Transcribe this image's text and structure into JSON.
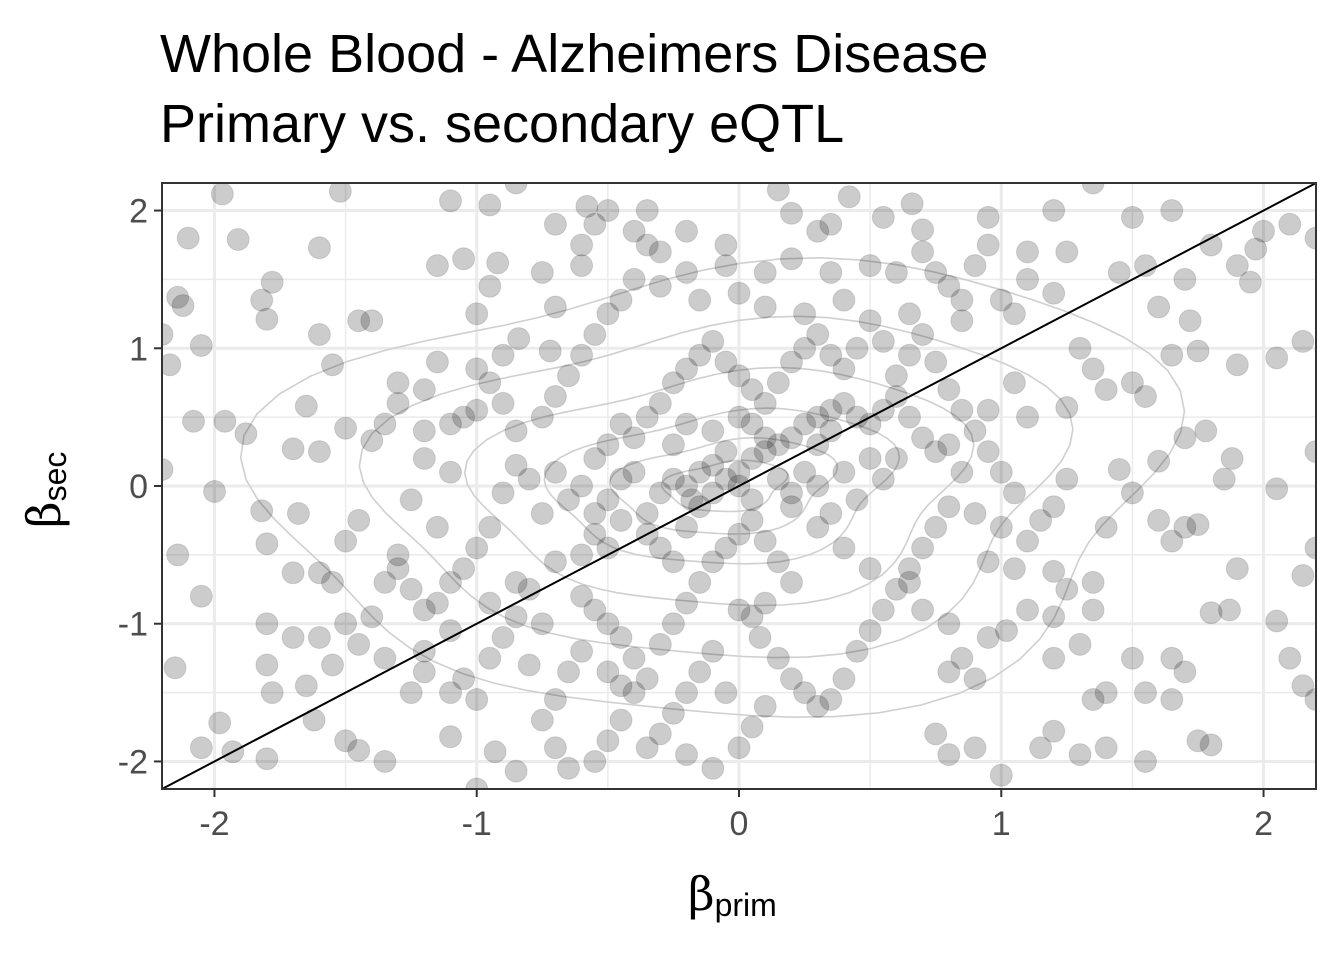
{
  "chart_data": {
    "type": "scatter",
    "title": "Whole Blood - Alzheimers Disease",
    "subtitle": "Primary vs. secondary eQTL",
    "xlabel": {
      "symbol": "β",
      "subscript": "prim"
    },
    "ylabel": {
      "symbol": "β",
      "subscript": "sec"
    },
    "xlim": [
      -2.2,
      2.2
    ],
    "ylim": [
      -2.2,
      2.2
    ],
    "x_ticks": [
      -2,
      -1,
      0,
      1,
      2
    ],
    "y_ticks": [
      -2,
      -1,
      0,
      1,
      2
    ],
    "x_tick_labels": [
      "-2",
      "-1",
      "0",
      "1",
      "2"
    ],
    "y_tick_labels": [
      "-2",
      "-1",
      "0",
      "1",
      "2"
    ],
    "grid": true,
    "reference_line": {
      "slope": 1,
      "intercept": 0
    },
    "density_contours": true,
    "colors": {
      "point": "#000000",
      "point_alpha": 0.2,
      "grid": "#ebebeb",
      "contour": "#cfcfcf",
      "frame": "#333333"
    },
    "points": [
      [
        -1.97,
        2.12
      ],
      [
        -1.52,
        2.14
      ],
      [
        -1.91,
        1.79
      ],
      [
        -2.1,
        1.8
      ],
      [
        -1.6,
        1.73
      ],
      [
        -1.1,
        2.07
      ],
      [
        -0.85,
        2.2
      ],
      [
        -0.95,
        2.04
      ],
      [
        -2.14,
        1.37
      ],
      [
        -2.12,
        1.31
      ],
      [
        -1.78,
        1.48
      ],
      [
        -1.82,
        1.35
      ],
      [
        -1.8,
        1.21
      ],
      [
        -1.45,
        1.2
      ],
      [
        -1.4,
        1.2
      ],
      [
        -2.05,
        1.02
      ],
      [
        -2.2,
        1.1
      ],
      [
        -1.55,
        0.88
      ],
      [
        -1.6,
        1.1
      ],
      [
        -2.17,
        0.88
      ],
      [
        -1.96,
        0.47
      ],
      [
        -1.88,
        0.38
      ],
      [
        -1.65,
        0.58
      ],
      [
        -1.3,
        0.75
      ],
      [
        -1.5,
        0.42
      ],
      [
        -1.4,
        0.33
      ],
      [
        -1.6,
        0.25
      ],
      [
        -1.7,
        0.27
      ],
      [
        -2.08,
        0.47
      ],
      [
        -2.2,
        0.12
      ],
      [
        -2.0,
        -0.04
      ],
      [
        -1.82,
        -0.18
      ],
      [
        -1.68,
        -0.2
      ],
      [
        -1.8,
        -0.42
      ],
      [
        -2.14,
        -0.5
      ],
      [
        -2.05,
        -0.8
      ],
      [
        -1.7,
        -0.63
      ],
      [
        -1.6,
        -0.63
      ],
      [
        -1.55,
        -0.7
      ],
      [
        -1.35,
        -0.7
      ],
      [
        -1.3,
        -0.5
      ],
      [
        -1.8,
        -1.0
      ],
      [
        -1.6,
        -1.1
      ],
      [
        -1.7,
        -1.1
      ],
      [
        -2.15,
        -1.32
      ],
      [
        -1.8,
        -1.3
      ],
      [
        -1.78,
        -1.5
      ],
      [
        -1.62,
        -1.7
      ],
      [
        -1.98,
        -1.72
      ],
      [
        -2.05,
        -1.9
      ],
      [
        -1.93,
        -1.93
      ],
      [
        -1.8,
        -1.98
      ],
      [
        -1.45,
        -1.92
      ],
      [
        -1.5,
        -1.85
      ],
      [
        -1.35,
        -2.0
      ],
      [
        -1.1,
        -1.82
      ],
      [
        -1.2,
        -1.2
      ],
      [
        -1.2,
        -1.35
      ],
      [
        -1.25,
        -1.5
      ],
      [
        -1.1,
        -1.5
      ],
      [
        -1.0,
        -1.55
      ],
      [
        -0.93,
        -1.93
      ],
      [
        -0.85,
        -2.07
      ],
      [
        -1.0,
        -2.2
      ],
      [
        -1.2,
        0.4
      ],
      [
        -1.05,
        0.5
      ],
      [
        -1.15,
        0.9
      ],
      [
        -1.0,
        0.85
      ],
      [
        -0.9,
        0.95
      ],
      [
        -1.0,
        1.25
      ],
      [
        -0.95,
        1.45
      ],
      [
        -0.92,
        1.62
      ],
      [
        -1.05,
        1.65
      ],
      [
        -1.15,
        1.6
      ],
      [
        -0.84,
        1.07
      ],
      [
        -0.72,
        0.98
      ],
      [
        -0.7,
        1.3
      ],
      [
        -0.75,
        1.55
      ],
      [
        -0.6,
        1.6
      ],
      [
        -0.55,
        1.9
      ],
      [
        -0.4,
        1.85
      ],
      [
        -0.5,
        2.0
      ],
      [
        -0.35,
        2.0
      ],
      [
        -0.58,
        2.03
      ],
      [
        -0.3,
        1.7
      ],
      [
        -0.2,
        1.85
      ],
      [
        -0.05,
        1.75
      ],
      [
        0.15,
        2.15
      ],
      [
        0.2,
        1.98
      ],
      [
        0.35,
        1.9
      ],
      [
        0.42,
        2.1
      ],
      [
        0.55,
        1.95
      ],
      [
        0.66,
        2.05
      ],
      [
        0.7,
        1.86
      ],
      [
        0.5,
        1.6
      ],
      [
        0.35,
        1.55
      ],
      [
        -0.3,
        1.45
      ],
      [
        -0.15,
        1.35
      ],
      [
        0.0,
        1.4
      ],
      [
        0.1,
        1.3
      ],
      [
        0.25,
        1.25
      ],
      [
        0.4,
        1.35
      ],
      [
        0.6,
        1.55
      ],
      [
        0.75,
        1.55
      ],
      [
        0.85,
        1.35
      ],
      [
        0.85,
        1.2
      ],
      [
        1.0,
        1.35
      ],
      [
        1.05,
        1.25
      ],
      [
        1.1,
        1.5
      ],
      [
        1.2,
        1.4
      ],
      [
        1.25,
        1.7
      ],
      [
        1.1,
        1.7
      ],
      [
        0.95,
        1.95
      ],
      [
        1.2,
        2.0
      ],
      [
        1.35,
        2.2
      ],
      [
        1.5,
        1.95
      ],
      [
        1.65,
        2.0
      ],
      [
        1.55,
        1.6
      ],
      [
        1.45,
        1.55
      ],
      [
        1.7,
        1.5
      ],
      [
        1.8,
        1.75
      ],
      [
        1.9,
        1.6
      ],
      [
        1.97,
        1.72
      ],
      [
        2.0,
        1.85
      ],
      [
        2.1,
        1.9
      ],
      [
        2.2,
        1.8
      ],
      [
        1.95,
        1.48
      ],
      [
        1.6,
        1.3
      ],
      [
        1.72,
        1.2
      ],
      [
        1.75,
        0.98
      ],
      [
        1.65,
        0.95
      ],
      [
        2.05,
        0.93
      ],
      [
        1.9,
        0.88
      ],
      [
        2.15,
        1.05
      ],
      [
        1.5,
        0.75
      ],
      [
        1.4,
        0.7
      ],
      [
        1.3,
        1.0
      ],
      [
        1.35,
        0.85
      ],
      [
        1.55,
        0.65
      ],
      [
        1.25,
        0.57
      ],
      [
        1.1,
        0.5
      ],
      [
        1.05,
        0.75
      ],
      [
        0.95,
        0.55
      ],
      [
        0.8,
        0.3
      ],
      [
        1.7,
        0.35
      ],
      [
        1.78,
        0.4
      ],
      [
        1.88,
        0.2
      ],
      [
        1.85,
        0.05
      ],
      [
        2.05,
        -0.02
      ],
      [
        2.2,
        0.25
      ],
      [
        1.6,
        0.18
      ],
      [
        1.45,
        0.12
      ],
      [
        1.5,
        -0.05
      ],
      [
        1.6,
        -0.25
      ],
      [
        1.7,
        -0.3
      ],
      [
        1.75,
        -0.28
      ],
      [
        1.65,
        -0.4
      ],
      [
        1.4,
        -0.3
      ],
      [
        1.2,
        -0.15
      ],
      [
        1.25,
        0.05
      ],
      [
        1.15,
        -0.25
      ],
      [
        1.1,
        -0.4
      ],
      [
        1.0,
        -0.3
      ],
      [
        0.95,
        -0.55
      ],
      [
        1.05,
        -0.6
      ],
      [
        1.2,
        -0.62
      ],
      [
        1.25,
        -0.75
      ],
      [
        1.35,
        -0.7
      ],
      [
        1.35,
        -0.9
      ],
      [
        1.2,
        -0.95
      ],
      [
        1.1,
        -0.9
      ],
      [
        1.02,
        -1.05
      ],
      [
        0.95,
        -1.1
      ],
      [
        0.8,
        -1.0
      ],
      [
        0.7,
        -0.9
      ],
      [
        0.65,
        -0.7
      ],
      [
        0.85,
        -1.25
      ],
      [
        0.9,
        -1.4
      ],
      [
        0.8,
        -1.35
      ],
      [
        1.2,
        -1.25
      ],
      [
        1.3,
        -1.15
      ],
      [
        1.5,
        -1.25
      ],
      [
        1.65,
        -1.25
      ],
      [
        1.7,
        -1.35
      ],
      [
        1.65,
        -1.55
      ],
      [
        1.55,
        -1.5
      ],
      [
        1.4,
        -1.5
      ],
      [
        1.35,
        -1.55
      ],
      [
        1.2,
        -1.78
      ],
      [
        1.15,
        -1.9
      ],
      [
        1.3,
        -1.95
      ],
      [
        1.4,
        -1.9
      ],
      [
        1.55,
        -2.0
      ],
      [
        1.75,
        -1.85
      ],
      [
        1.8,
        -1.88
      ],
      [
        1.8,
        -0.92
      ],
      [
        1.87,
        -0.9
      ],
      [
        2.05,
        -0.98
      ],
      [
        1.9,
        -0.6
      ],
      [
        2.15,
        -0.65
      ],
      [
        2.2,
        -0.45
      ],
      [
        2.1,
        -1.25
      ],
      [
        2.15,
        -1.45
      ],
      [
        2.2,
        -1.55
      ],
      [
        0.9,
        -1.9
      ],
      [
        1.0,
        -2.1
      ],
      [
        0.8,
        -1.95
      ],
      [
        0.75,
        -1.8
      ],
      [
        -0.8,
        -0.75
      ],
      [
        -0.85,
        -0.7
      ],
      [
        -0.7,
        -0.55
      ],
      [
        -0.6,
        -0.5
      ],
      [
        -0.5,
        -0.45
      ],
      [
        -0.55,
        -0.35
      ],
      [
        -0.45,
        -0.25
      ],
      [
        -0.35,
        -0.2
      ],
      [
        -0.3,
        -0.05
      ],
      [
        -0.25,
        0.05
      ],
      [
        -0.2,
        0.0
      ],
      [
        -0.18,
        -0.1
      ],
      [
        -0.15,
        0.1
      ],
      [
        -0.1,
        0.15
      ],
      [
        -0.05,
        0.05
      ],
      [
        0.0,
        0.1
      ],
      [
        0.05,
        0.2
      ],
      [
        0.1,
        0.25
      ],
      [
        0.15,
        0.3
      ],
      [
        0.2,
        0.35
      ],
      [
        0.25,
        0.45
      ],
      [
        0.3,
        0.5
      ],
      [
        0.35,
        0.55
      ],
      [
        0.4,
        0.6
      ],
      [
        0.45,
        0.5
      ],
      [
        0.5,
        0.45
      ],
      [
        0.55,
        0.55
      ],
      [
        0.6,
        0.65
      ],
      [
        0.65,
        0.5
      ],
      [
        0.7,
        0.35
      ],
      [
        0.75,
        0.25
      ],
      [
        0.6,
        0.2
      ],
      [
        -0.55,
        0.2
      ],
      [
        -0.5,
        0.3
      ],
      [
        -0.45,
        0.45
      ],
      [
        -0.4,
        0.35
      ],
      [
        -0.35,
        0.5
      ],
      [
        -0.3,
        0.6
      ],
      [
        -0.25,
        0.75
      ],
      [
        -0.2,
        0.85
      ],
      [
        -0.15,
        0.95
      ],
      [
        -0.1,
        1.05
      ],
      [
        -0.05,
        0.9
      ],
      [
        0.0,
        0.8
      ],
      [
        0.05,
        0.7
      ],
      [
        0.1,
        0.6
      ],
      [
        0.15,
        0.75
      ],
      [
        0.2,
        0.9
      ],
      [
        0.25,
        1.0
      ],
      [
        0.3,
        1.1
      ],
      [
        0.35,
        0.95
      ],
      [
        0.4,
        0.85
      ],
      [
        -0.6,
        0.0
      ],
      [
        -0.65,
        -0.1
      ],
      [
        -0.7,
        0.1
      ],
      [
        -0.75,
        -0.2
      ],
      [
        -0.8,
        0.05
      ],
      [
        -0.85,
        0.15
      ],
      [
        -0.9,
        -0.05
      ],
      [
        -0.95,
        -0.3
      ],
      [
        -1.0,
        -0.45
      ],
      [
        -1.05,
        -0.6
      ],
      [
        -1.1,
        -0.7
      ],
      [
        -1.15,
        -0.85
      ],
      [
        -0.6,
        -0.8
      ],
      [
        -0.55,
        -0.9
      ],
      [
        -0.5,
        -1.0
      ],
      [
        -0.45,
        -1.1
      ],
      [
        -0.4,
        -1.25
      ],
      [
        -0.35,
        -1.4
      ],
      [
        -0.4,
        -1.5
      ],
      [
        -0.45,
        -1.45
      ],
      [
        -0.5,
        -1.35
      ],
      [
        -0.3,
        -1.15
      ],
      [
        -0.25,
        -1.0
      ],
      [
        -0.2,
        -0.85
      ],
      [
        -0.15,
        -0.7
      ],
      [
        -0.1,
        -0.55
      ],
      [
        -0.05,
        -0.45
      ],
      [
        0.0,
        -0.35
      ],
      [
        0.05,
        -0.25
      ],
      [
        0.1,
        -0.4
      ],
      [
        0.15,
        -0.55
      ],
      [
        0.2,
        -0.7
      ],
      [
        0.1,
        -0.85
      ],
      [
        0.05,
        -0.95
      ],
      [
        0.0,
        -0.9
      ],
      [
        0.08,
        -1.1
      ],
      [
        0.15,
        -1.25
      ],
      [
        0.2,
        -1.4
      ],
      [
        0.25,
        -1.5
      ],
      [
        0.3,
        -1.6
      ],
      [
        0.35,
        -1.55
      ],
      [
        0.4,
        -1.4
      ],
      [
        0.45,
        -1.2
      ],
      [
        0.5,
        -1.05
      ],
      [
        0.55,
        -0.9
      ],
      [
        0.6,
        -0.75
      ],
      [
        0.5,
        -0.6
      ],
      [
        0.4,
        -0.45
      ],
      [
        0.3,
        -0.3
      ],
      [
        0.2,
        -0.15
      ],
      [
        0.3,
        0.0
      ],
      [
        0.4,
        0.1
      ],
      [
        0.5,
        0.2
      ],
      [
        0.55,
        0.05
      ],
      [
        0.45,
        -0.1
      ],
      [
        0.35,
        -0.2
      ],
      [
        -0.1,
        -1.2
      ],
      [
        -0.15,
        -1.35
      ],
      [
        -0.2,
        -1.5
      ],
      [
        -0.25,
        -1.65
      ],
      [
        -0.3,
        -1.8
      ],
      [
        -0.35,
        -1.9
      ],
      [
        -0.2,
        -1.95
      ],
      [
        -0.1,
        -2.05
      ],
      [
        0.0,
        -1.9
      ],
      [
        0.05,
        -1.75
      ],
      [
        0.1,
        -1.6
      ],
      [
        -0.05,
        -1.5
      ],
      [
        -0.6,
        -1.2
      ],
      [
        -0.65,
        -1.35
      ],
      [
        -0.7,
        -1.55
      ],
      [
        -0.75,
        -1.7
      ],
      [
        -0.7,
        -1.9
      ],
      [
        -0.65,
        -2.05
      ],
      [
        -0.55,
        -2.0
      ],
      [
        -0.5,
        -1.85
      ],
      [
        -0.45,
        -1.7
      ],
      [
        -0.8,
        -1.3
      ],
      [
        -0.9,
        -1.1
      ],
      [
        -0.95,
        -1.25
      ],
      [
        -1.1,
        -1.05
      ],
      [
        -1.2,
        -0.9
      ],
      [
        -1.25,
        -0.75
      ],
      [
        -1.3,
        -0.6
      ],
      [
        -0.75,
        0.5
      ],
      [
        -0.7,
        0.65
      ],
      [
        -0.65,
        0.8
      ],
      [
        -0.6,
        0.95
      ],
      [
        -0.55,
        1.1
      ],
      [
        -0.5,
        1.25
      ],
      [
        -0.45,
        1.35
      ],
      [
        -0.4,
        1.5
      ],
      [
        -0.85,
        0.4
      ],
      [
        -0.9,
        0.6
      ],
      [
        -0.95,
        0.75
      ],
      [
        -1.0,
        0.55
      ],
      [
        -1.1,
        0.45
      ],
      [
        -1.2,
        0.7
      ],
      [
        -1.3,
        0.6
      ],
      [
        -1.35,
        0.45
      ],
      [
        0.6,
        0.8
      ],
      [
        0.65,
        0.95
      ],
      [
        0.7,
        1.1
      ],
      [
        0.75,
        0.9
      ],
      [
        0.8,
        0.7
      ],
      [
        0.85,
        0.55
      ],
      [
        0.9,
        0.4
      ],
      [
        0.95,
        0.25
      ],
      [
        1.0,
        0.1
      ],
      [
        1.05,
        -0.05
      ],
      [
        0.85,
        0.1
      ],
      [
        0.8,
        -0.15
      ],
      [
        0.75,
        -0.3
      ],
      [
        0.7,
        -0.45
      ],
      [
        0.65,
        -0.6
      ],
      [
        0.9,
        -0.2
      ],
      [
        -0.25,
        0.3
      ],
      [
        -0.2,
        0.45
      ],
      [
        -0.1,
        0.4
      ],
      [
        0.0,
        0.5
      ],
      [
        0.05,
        0.45
      ],
      [
        0.15,
        0.05
      ],
      [
        0.2,
        -0.05
      ],
      [
        0.25,
        0.1
      ],
      [
        -0.4,
        0.1
      ],
      [
        -0.45,
        0.05
      ],
      [
        -0.5,
        -0.1
      ],
      [
        -0.55,
        -0.2
      ],
      [
        -0.35,
        -0.35
      ],
      [
        -0.3,
        -0.45
      ],
      [
        -0.25,
        -0.55
      ],
      [
        -0.2,
        -0.3
      ],
      [
        -0.15,
        -0.15
      ],
      [
        -0.1,
        -0.05
      ],
      [
        0.0,
        0.0
      ],
      [
        0.05,
        -0.1
      ],
      [
        -0.05,
        0.25
      ],
      [
        0.1,
        0.35
      ],
      [
        0.3,
        0.3
      ],
      [
        0.35,
        0.4
      ],
      [
        -1.45,
        -0.25
      ],
      [
        -1.5,
        -0.4
      ],
      [
        -1.4,
        -0.95
      ],
      [
        -1.5,
        -1.0
      ],
      [
        -1.45,
        -1.15
      ],
      [
        -1.35,
        -1.25
      ],
      [
        -1.55,
        -1.3
      ],
      [
        -1.65,
        -1.45
      ],
      [
        -1.25,
        -0.1
      ],
      [
        -1.15,
        -0.3
      ],
      [
        -1.1,
        0.1
      ],
      [
        -1.2,
        0.2
      ],
      [
        -0.75,
        -1.0
      ],
      [
        -0.85,
        -0.95
      ],
      [
        -0.95,
        -0.85
      ],
      [
        -1.05,
        -1.4
      ],
      [
        0.5,
        1.2
      ],
      [
        0.55,
        1.05
      ],
      [
        0.45,
        1.0
      ],
      [
        0.65,
        1.25
      ],
      [
        0.8,
        1.45
      ],
      [
        0.9,
        1.6
      ],
      [
        0.95,
        1.75
      ],
      [
        0.7,
        1.7
      ],
      [
        0.3,
        1.85
      ],
      [
        0.2,
        1.65
      ],
      [
        0.1,
        1.55
      ],
      [
        -0.05,
        1.6
      ],
      [
        -0.2,
        1.55
      ],
      [
        -0.35,
        1.75
      ],
      [
        -0.6,
        1.75
      ],
      [
        -0.7,
        1.9
      ]
    ]
  }
}
